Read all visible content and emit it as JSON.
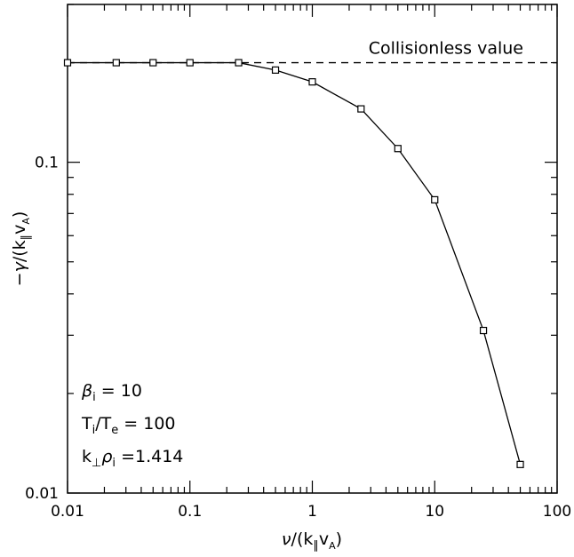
{
  "chart_data": {
    "type": "line",
    "xscale": "log",
    "yscale": "log",
    "xlim": [
      0.01,
      100
    ],
    "ylim": [
      0.01,
      0.3
    ],
    "x_tick_labels": [
      "0.01",
      "0.1",
      "1",
      "10",
      "100"
    ],
    "y_tick_labels": [
      "0.01",
      "0.1"
    ],
    "grid": false,
    "series": [
      {
        "marker": "square",
        "points": [
          {
            "x": 0.01,
            "y": 0.2
          },
          {
            "x": 0.025,
            "y": 0.2
          },
          {
            "x": 0.05,
            "y": 0.2
          },
          {
            "x": 0.1,
            "y": 0.2
          },
          {
            "x": 0.25,
            "y": 0.2
          },
          {
            "x": 0.5,
            "y": 0.19
          },
          {
            "x": 1,
            "y": 0.175
          },
          {
            "x": 2.5,
            "y": 0.145
          },
          {
            "x": 5,
            "y": 0.11
          },
          {
            "x": 10,
            "y": 0.077
          },
          {
            "x": 25,
            "y": 0.031
          },
          {
            "x": 50,
            "y": 0.0122
          }
        ]
      }
    ],
    "reference_line": {
      "y": 0.2,
      "style": "dashed",
      "label": "Collisionless value"
    },
    "xlabel": "ν/(k∥vA)",
    "ylabel": "−γ/(k∥vA)",
    "annotations": {
      "beta": "βi = 10",
      "temp_ratio": "Ti/Te = 100",
      "k_rho": "k⊥ρi =1.414"
    }
  }
}
